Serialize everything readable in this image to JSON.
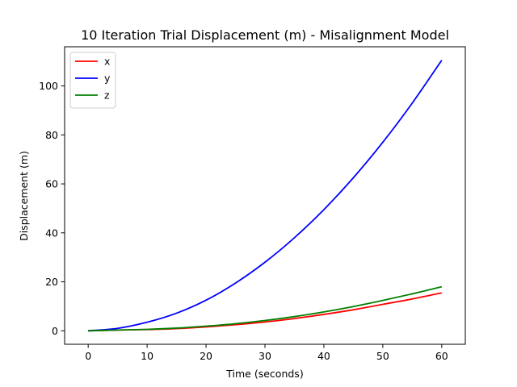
{
  "chart_data": {
    "type": "line",
    "title": "10 Iteration Trial Displacement (m) - Misalignment Model",
    "xlabel": "Time (seconds)",
    "ylabel": "Displacement (m)",
    "xlim": [
      -4,
      64
    ],
    "ylim": [
      -5.5,
      116
    ],
    "xticks": [
      0,
      10,
      20,
      30,
      40,
      50,
      60
    ],
    "yticks": [
      0,
      20,
      40,
      60,
      80,
      100
    ],
    "legend_position": "upper left",
    "grid": false,
    "series": [
      {
        "name": "x",
        "color": "#ff0000",
        "x": [
          0,
          5,
          10,
          15,
          20,
          25,
          30,
          35,
          40,
          45,
          50,
          55,
          60
        ],
        "y": [
          0,
          0.3,
          0.5,
          0.9,
          1.6,
          2.5,
          3.6,
          5.0,
          6.7,
          8.6,
          10.8,
          13.0,
          15.5
        ]
      },
      {
        "name": "y",
        "color": "#0000ff",
        "x": [
          0,
          5,
          10,
          15,
          20,
          25,
          30,
          35,
          40,
          45,
          50,
          55,
          60
        ],
        "y": [
          0,
          1.0,
          3.5,
          7.2,
          12.5,
          19.5,
          28.0,
          38.0,
          49.5,
          62.5,
          77.0,
          93.0,
          110.5
        ]
      },
      {
        "name": "z",
        "color": "#008000",
        "x": [
          0,
          5,
          10,
          15,
          20,
          25,
          30,
          35,
          40,
          45,
          50,
          55,
          60
        ],
        "y": [
          0,
          0.3,
          0.6,
          1.1,
          1.9,
          2.9,
          4.2,
          5.8,
          7.7,
          9.9,
          12.4,
          15.1,
          18.0
        ]
      }
    ]
  }
}
